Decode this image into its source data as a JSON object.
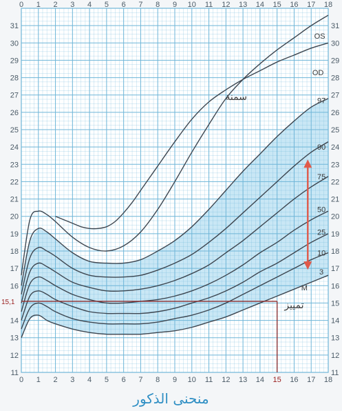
{
  "chart_data": {
    "type": "line",
    "title": "منحنى الذكور",
    "xlim": [
      0,
      18
    ],
    "ylim": [
      11,
      32
    ],
    "x_ticks": [
      0,
      1,
      2,
      3,
      4,
      5,
      6,
      7,
      8,
      9,
      10,
      11,
      12,
      13,
      14,
      15,
      16,
      17,
      18
    ],
    "y_ticks": [
      11,
      12,
      13,
      14,
      15,
      16,
      17,
      18,
      19,
      20,
      21,
      22,
      23,
      24,
      25,
      26,
      27,
      28,
      29,
      30,
      31
    ],
    "grid": true,
    "colors": {
      "grid": "#6fb6d8",
      "band": "#bfe3f3",
      "curve": "#3d4650",
      "arrow": "#e05a4a",
      "marker": "#8b2a2a",
      "title": "#2f8fc4"
    },
    "percentile_series": [
      {
        "name": "3",
        "x": [
          0,
          0.5,
          1,
          1.5,
          2,
          3,
          4,
          5,
          6,
          7,
          8,
          9,
          10,
          11,
          12,
          13,
          14,
          15,
          16,
          17,
          18
        ],
        "y": [
          13.0,
          14.1,
          14.3,
          14.0,
          13.8,
          13.5,
          13.3,
          13.2,
          13.2,
          13.2,
          13.3,
          13.4,
          13.6,
          13.9,
          14.2,
          14.6,
          15.0,
          15.4,
          15.8,
          16.2,
          16.6
        ]
      },
      {
        "name": "10",
        "x": [
          0,
          0.5,
          1,
          1.5,
          2,
          3,
          4,
          5,
          6,
          7,
          8,
          9,
          10,
          11,
          12,
          13,
          14,
          15,
          16,
          17,
          18
        ],
        "y": [
          13.5,
          14.7,
          15.0,
          14.8,
          14.5,
          14.1,
          13.9,
          13.8,
          13.8,
          13.8,
          13.9,
          14.1,
          14.3,
          14.6,
          15.0,
          15.5,
          16.0,
          16.5,
          17.0,
          17.5,
          17.9
        ]
      },
      {
        "name": "25",
        "x": [
          0,
          0.5,
          1,
          1.5,
          2,
          3,
          4,
          5,
          6,
          7,
          8,
          9,
          10,
          11,
          12,
          13,
          14,
          15,
          16,
          17,
          18
        ],
        "y": [
          14.0,
          15.4,
          15.7,
          15.5,
          15.2,
          14.8,
          14.5,
          14.4,
          14.4,
          14.4,
          14.5,
          14.7,
          15.0,
          15.3,
          15.7,
          16.2,
          16.8,
          17.3,
          17.9,
          18.5,
          19.0
        ]
      },
      {
        "name": "50",
        "x": [
          0,
          0.5,
          1,
          1.5,
          2,
          3,
          4,
          5,
          6,
          7,
          8,
          9,
          10,
          11,
          12,
          13,
          14,
          15,
          16,
          17,
          18
        ],
        "y": [
          14.5,
          16.1,
          16.5,
          16.3,
          16.0,
          15.5,
          15.2,
          15.0,
          15.0,
          15.1,
          15.2,
          15.4,
          15.7,
          16.1,
          16.6,
          17.2,
          17.9,
          18.5,
          19.2,
          19.8,
          20.3
        ]
      },
      {
        "name": "75",
        "x": [
          0,
          0.5,
          1,
          1.5,
          2,
          3,
          4,
          5,
          6,
          7,
          8,
          9,
          10,
          11,
          12,
          13,
          14,
          15,
          16,
          17,
          18
        ],
        "y": [
          15.0,
          16.8,
          17.3,
          17.1,
          16.8,
          16.2,
          15.9,
          15.7,
          15.7,
          15.8,
          16.0,
          16.3,
          16.7,
          17.2,
          17.9,
          18.6,
          19.4,
          20.2,
          21.0,
          21.7,
          22.3
        ]
      },
      {
        "name": "90",
        "x": [
          0,
          0.5,
          1,
          1.5,
          2,
          3,
          4,
          5,
          6,
          7,
          8,
          9,
          10,
          11,
          12,
          13,
          14,
          15,
          16,
          17,
          18
        ],
        "y": [
          15.5,
          17.6,
          18.2,
          18.0,
          17.7,
          17.0,
          16.6,
          16.5,
          16.5,
          16.6,
          16.9,
          17.3,
          17.8,
          18.5,
          19.3,
          20.2,
          21.1,
          22.0,
          22.9,
          23.7,
          24.3
        ]
      },
      {
        "name": "97",
        "x": [
          0,
          0.5,
          1,
          1.5,
          2,
          3,
          4,
          5,
          6,
          7,
          8,
          9,
          10,
          11,
          12,
          13,
          14,
          15,
          16,
          17,
          18
        ],
        "y": [
          16.0,
          18.6,
          19.3,
          19.1,
          18.7,
          17.9,
          17.4,
          17.3,
          17.3,
          17.5,
          18.0,
          18.6,
          19.4,
          20.4,
          21.5,
          22.6,
          23.6,
          24.6,
          25.5,
          26.3,
          26.8
        ]
      },
      {
        "name": "OD",
        "x": [
          0,
          0.5,
          1,
          1.5,
          2,
          3,
          4,
          5,
          6,
          7,
          8,
          9,
          10,
          11,
          12,
          13,
          14,
          15,
          16,
          17,
          18
        ],
        "y": [
          16.6,
          19.8,
          20.3,
          20.1,
          19.7,
          18.8,
          18.2,
          18.0,
          18.3,
          19.1,
          20.4,
          22.0,
          23.7,
          25.3,
          26.8,
          27.9,
          28.8,
          29.6,
          30.3,
          31.0,
          31.6
        ]
      }
    ],
    "extra_series": [
      {
        "x": [
          2,
          2.5,
          3,
          3.5,
          4,
          4.5,
          5,
          5.5,
          6,
          6.5,
          7,
          7.5,
          8,
          9,
          10,
          11,
          12,
          13,
          14,
          15,
          16,
          17,
          18
        ],
        "y": [
          20.0,
          19.8,
          19.6,
          19.4,
          19.3,
          19.3,
          19.4,
          19.7,
          20.2,
          20.8,
          21.5,
          22.2,
          22.9,
          24.3,
          25.6,
          26.6,
          27.3,
          27.9,
          28.4,
          28.9,
          29.3,
          29.7,
          30.0
        ]
      }
    ],
    "band": {
      "lower": "3",
      "upper": "97"
    },
    "marker": {
      "x": 15,
      "y": 15.1,
      "y_label": "15,1",
      "x_label": "15"
    },
    "arrow": {
      "x": 16.8,
      "y_from": 17.0,
      "y_to": 23.2
    },
    "curve_labels": [
      {
        "text": "OS",
        "x": 17.5,
        "y": 30.4
      },
      {
        "text": "OD",
        "x": 17.4,
        "y": 28.3
      },
      {
        "text": "97",
        "x": 17.6,
        "y": 26.7
      },
      {
        "text": "90",
        "x": 17.6,
        "y": 24.0
      },
      {
        "text": "75",
        "x": 17.6,
        "y": 22.3
      },
      {
        "text": "50",
        "x": 17.6,
        "y": 20.4
      },
      {
        "text": "25",
        "x": 17.6,
        "y": 19.1
      },
      {
        "text": "10",
        "x": 17.6,
        "y": 17.9
      },
      {
        "text": "3",
        "x": 17.6,
        "y": 16.8
      },
      {
        "text": "M",
        "x": 16.6,
        "y": 15.9
      }
    ],
    "annotations": [
      {
        "text": "سمنة",
        "x": 12.6,
        "y": 26.9
      },
      {
        "text": "تمييز",
        "x": 16.0,
        "y": 14.9
      }
    ]
  }
}
